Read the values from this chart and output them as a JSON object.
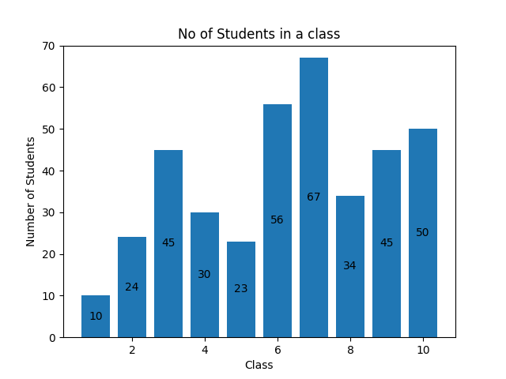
{
  "classes": [
    1,
    2,
    3,
    4,
    5,
    6,
    7,
    8,
    9,
    10
  ],
  "values": [
    10,
    24,
    45,
    30,
    23,
    56,
    67,
    34,
    45,
    50
  ],
  "bar_color": "#2077b4",
  "title": "No of Students in a class",
  "xlabel": "Class",
  "ylabel": "Number of Students",
  "ylim": [
    0,
    70
  ],
  "title_fontsize": 12,
  "label_fontsize": 10,
  "annotation_fontsize": 10,
  "xticks": [
    2,
    4,
    6,
    8,
    10
  ]
}
